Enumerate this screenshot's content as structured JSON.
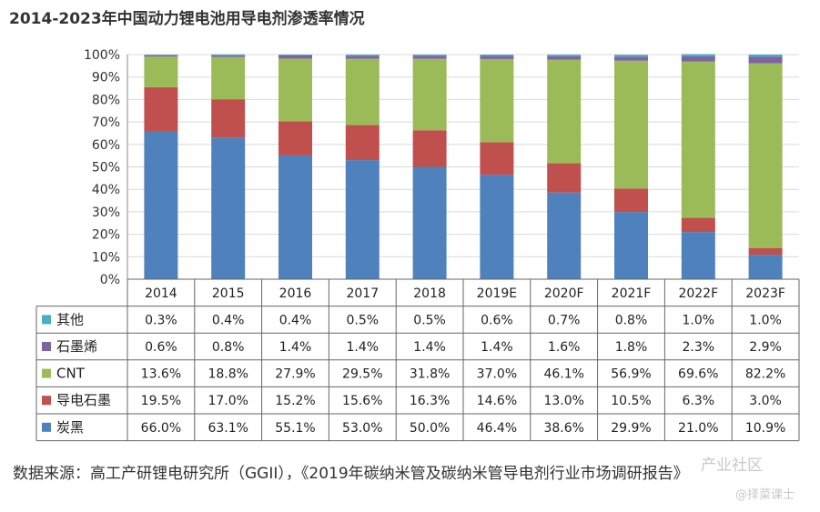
{
  "title": "2014-2023年中国动力锂电池用导电剂渗透率情况",
  "source": "数据来源：高工产研锂电研究所（GGII），《2019年碳纳米管及碳纳米管导电剂行业市场调研报告》",
  "watermark": {
    "line1": "产业社区",
    "line2": "@择菜课士"
  },
  "chart_data": {
    "type": "bar",
    "stacked": true,
    "categories": [
      "2014",
      "2015",
      "2016",
      "2017",
      "2018",
      "2019E",
      "2020F",
      "2021F",
      "2022F",
      "2023F"
    ],
    "yticks": [
      "0%",
      "10%",
      "20%",
      "30%",
      "40%",
      "50%",
      "60%",
      "70%",
      "80%",
      "90%",
      "100%"
    ],
    "ylim": [
      0,
      100
    ],
    "series": [
      {
        "name": "炭黑",
        "color": "#4f81bd",
        "values": [
          66.0,
          63.1,
          55.1,
          53.0,
          50.0,
          46.4,
          38.6,
          29.9,
          21.0,
          10.9
        ],
        "labels": [
          "66.0%",
          "63.1%",
          "55.1%",
          "53.0%",
          "50.0%",
          "46.4%",
          "38.6%",
          "29.9%",
          "21.0%",
          "10.9%"
        ]
      },
      {
        "name": "导电石墨",
        "color": "#c0504d",
        "values": [
          19.5,
          17.0,
          15.2,
          15.6,
          16.3,
          14.6,
          13.0,
          10.5,
          6.3,
          3.0
        ],
        "labels": [
          "19.5%",
          "17.0%",
          "15.2%",
          "15.6%",
          "16.3%",
          "14.6%",
          "13.0%",
          "10.5%",
          "6.3%",
          "3.0%"
        ]
      },
      {
        "name": "CNT",
        "color": "#9bbb59",
        "values": [
          13.6,
          18.8,
          27.9,
          29.5,
          31.8,
          37.0,
          46.1,
          56.9,
          69.6,
          82.2
        ],
        "labels": [
          "13.6%",
          "18.8%",
          "27.9%",
          "29.5%",
          "31.8%",
          "37.0%",
          "46.1%",
          "56.9%",
          "69.6%",
          "82.2%"
        ]
      },
      {
        "name": "石墨烯",
        "color": "#8064a2",
        "values": [
          0.6,
          0.8,
          1.4,
          1.4,
          1.4,
          1.4,
          1.6,
          1.8,
          2.3,
          2.9
        ],
        "labels": [
          "0.6%",
          "0.8%",
          "1.4%",
          "1.4%",
          "1.4%",
          "1.4%",
          "1.6%",
          "1.8%",
          "2.3%",
          "2.9%"
        ]
      },
      {
        "name": "其他",
        "color": "#4bacc6",
        "values": [
          0.3,
          0.4,
          0.4,
          0.5,
          0.5,
          0.6,
          0.7,
          0.8,
          1.0,
          1.0
        ],
        "labels": [
          "0.3%",
          "0.4%",
          "0.4%",
          "0.5%",
          "0.5%",
          "0.6%",
          "0.7%",
          "0.8%",
          "1.0%",
          "1.0%"
        ]
      }
    ]
  }
}
